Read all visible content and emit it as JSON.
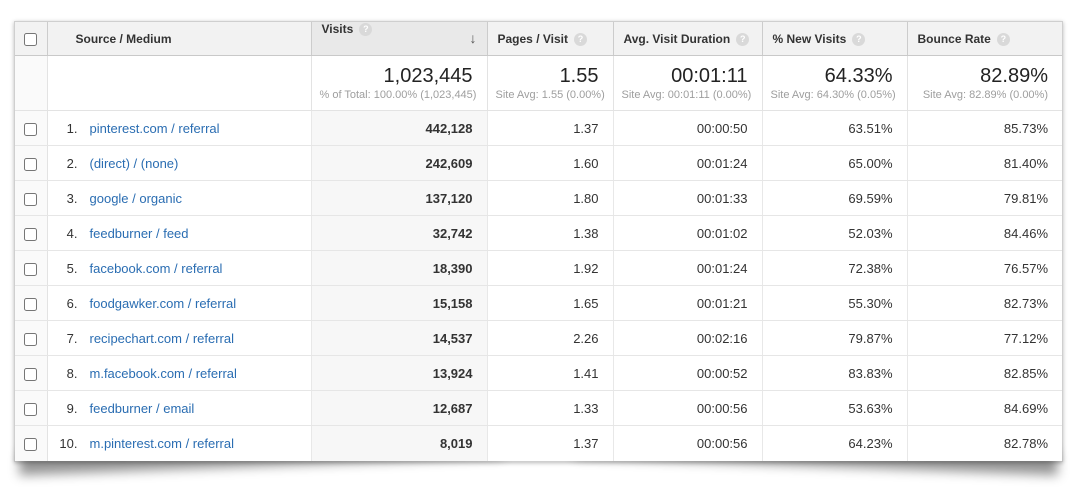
{
  "icons": {
    "help": "?",
    "sort_desc": "↓"
  },
  "colors": {
    "link_blue": "#2a6db2",
    "header_bg": "#f2f2f2",
    "sorted_header_bg": "#e9e9e9",
    "sorted_col_bg": "#f7f7f7",
    "subtext_gray": "#9e9e9e"
  },
  "table": {
    "columns": [
      {
        "label": "Source / Medium",
        "help": false,
        "sorted": false
      },
      {
        "label": "Visits",
        "help": true,
        "sorted": true
      },
      {
        "label": "Pages / Visit",
        "help": true,
        "sorted": false
      },
      {
        "label": "Avg. Visit Duration",
        "help": true,
        "sorted": false
      },
      {
        "label": "% New Visits",
        "help": true,
        "sorted": false
      },
      {
        "label": "Bounce Rate",
        "help": true,
        "sorted": false
      }
    ],
    "summary": {
      "visits": {
        "value": "1,023,445",
        "sub": "% of Total: 100.00% (1,023,445)"
      },
      "pages_visit": {
        "value": "1.55",
        "sub": "Site Avg: 1.55 (0.00%)"
      },
      "avg_duration": {
        "value": "00:01:11",
        "sub": "Site Avg: 00:01:11 (0.00%)"
      },
      "new_visits": {
        "value": "64.33%",
        "sub": "Site Avg: 64.30% (0.05%)"
      },
      "bounce_rate": {
        "value": "82.89%",
        "sub": "Site Avg: 82.89% (0.00%)"
      }
    },
    "rows": [
      {
        "index": "1.",
        "source_medium": "pinterest.com / referral",
        "visits": "442,128",
        "pages_visit": "1.37",
        "avg_duration": "00:00:50",
        "new_visits": "63.51%",
        "bounce_rate": "85.73%"
      },
      {
        "index": "2.",
        "source_medium": "(direct) / (none)",
        "visits": "242,609",
        "pages_visit": "1.60",
        "avg_duration": "00:01:24",
        "new_visits": "65.00%",
        "bounce_rate": "81.40%"
      },
      {
        "index": "3.",
        "source_medium": "google / organic",
        "visits": "137,120",
        "pages_visit": "1.80",
        "avg_duration": "00:01:33",
        "new_visits": "69.59%",
        "bounce_rate": "79.81%"
      },
      {
        "index": "4.",
        "source_medium": "feedburner / feed",
        "visits": "32,742",
        "pages_visit": "1.38",
        "avg_duration": "00:01:02",
        "new_visits": "52.03%",
        "bounce_rate": "84.46%"
      },
      {
        "index": "5.",
        "source_medium": "facebook.com / referral",
        "visits": "18,390",
        "pages_visit": "1.92",
        "avg_duration": "00:01:24",
        "new_visits": "72.38%",
        "bounce_rate": "76.57%"
      },
      {
        "index": "6.",
        "source_medium": "foodgawker.com / referral",
        "visits": "15,158",
        "pages_visit": "1.65",
        "avg_duration": "00:01:21",
        "new_visits": "55.30%",
        "bounce_rate": "82.73%"
      },
      {
        "index": "7.",
        "source_medium": "recipechart.com / referral",
        "visits": "14,537",
        "pages_visit": "2.26",
        "avg_duration": "00:02:16",
        "new_visits": "79.87%",
        "bounce_rate": "77.12%"
      },
      {
        "index": "8.",
        "source_medium": "m.facebook.com / referral",
        "visits": "13,924",
        "pages_visit": "1.41",
        "avg_duration": "00:00:52",
        "new_visits": "83.83%",
        "bounce_rate": "82.85%"
      },
      {
        "index": "9.",
        "source_medium": "feedburner / email",
        "visits": "12,687",
        "pages_visit": "1.33",
        "avg_duration": "00:00:56",
        "new_visits": "53.63%",
        "bounce_rate": "84.69%"
      },
      {
        "index": "10.",
        "source_medium": "m.pinterest.com / referral",
        "visits": "8,019",
        "pages_visit": "1.37",
        "avg_duration": "00:00:56",
        "new_visits": "64.23%",
        "bounce_rate": "82.78%"
      }
    ]
  }
}
